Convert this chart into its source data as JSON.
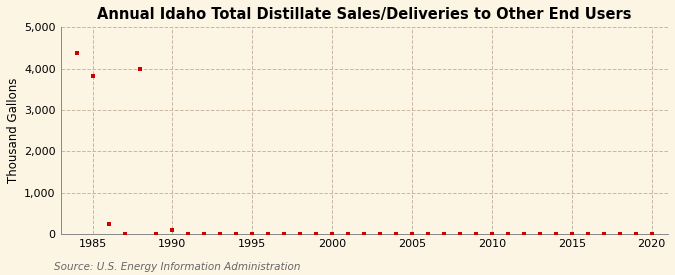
{
  "title": "Annual Idaho Total Distillate Sales/Deliveries to Other End Users",
  "ylabel": "Thousand Gallons",
  "source": "Source: U.S. Energy Information Administration",
  "background_color": "#fdf5e4",
  "x_data": [
    1984,
    1985,
    1986,
    1987,
    1988,
    1989,
    1990,
    1991,
    1992,
    1993,
    1994,
    1995,
    1996,
    1997,
    1998,
    1999,
    2000,
    2001,
    2002,
    2003,
    2004,
    2005,
    2006,
    2007,
    2008,
    2009,
    2010,
    2011,
    2012,
    2013,
    2014,
    2015,
    2016,
    2017,
    2018,
    2019,
    2020
  ],
  "y_data": [
    4380,
    3820,
    250,
    2,
    3980,
    5,
    90,
    5,
    5,
    5,
    5,
    5,
    5,
    5,
    5,
    5,
    5,
    5,
    5,
    5,
    5,
    5,
    5,
    5,
    5,
    5,
    5,
    5,
    5,
    5,
    5,
    5,
    5,
    5,
    5,
    5,
    3
  ],
  "marker_color": "#cc0000",
  "marker_size": 3.5,
  "xlim": [
    1983,
    2021
  ],
  "ylim": [
    0,
    5000
  ],
  "yticks": [
    0,
    1000,
    2000,
    3000,
    4000,
    5000
  ],
  "xticks": [
    1985,
    1990,
    1995,
    2000,
    2005,
    2010,
    2015,
    2020
  ],
  "title_fontsize": 10.5,
  "axis_fontsize": 8.5,
  "tick_fontsize": 8,
  "source_fontsize": 7.5,
  "grid_color": "#c8b8a0",
  "spine_color": "#888888"
}
